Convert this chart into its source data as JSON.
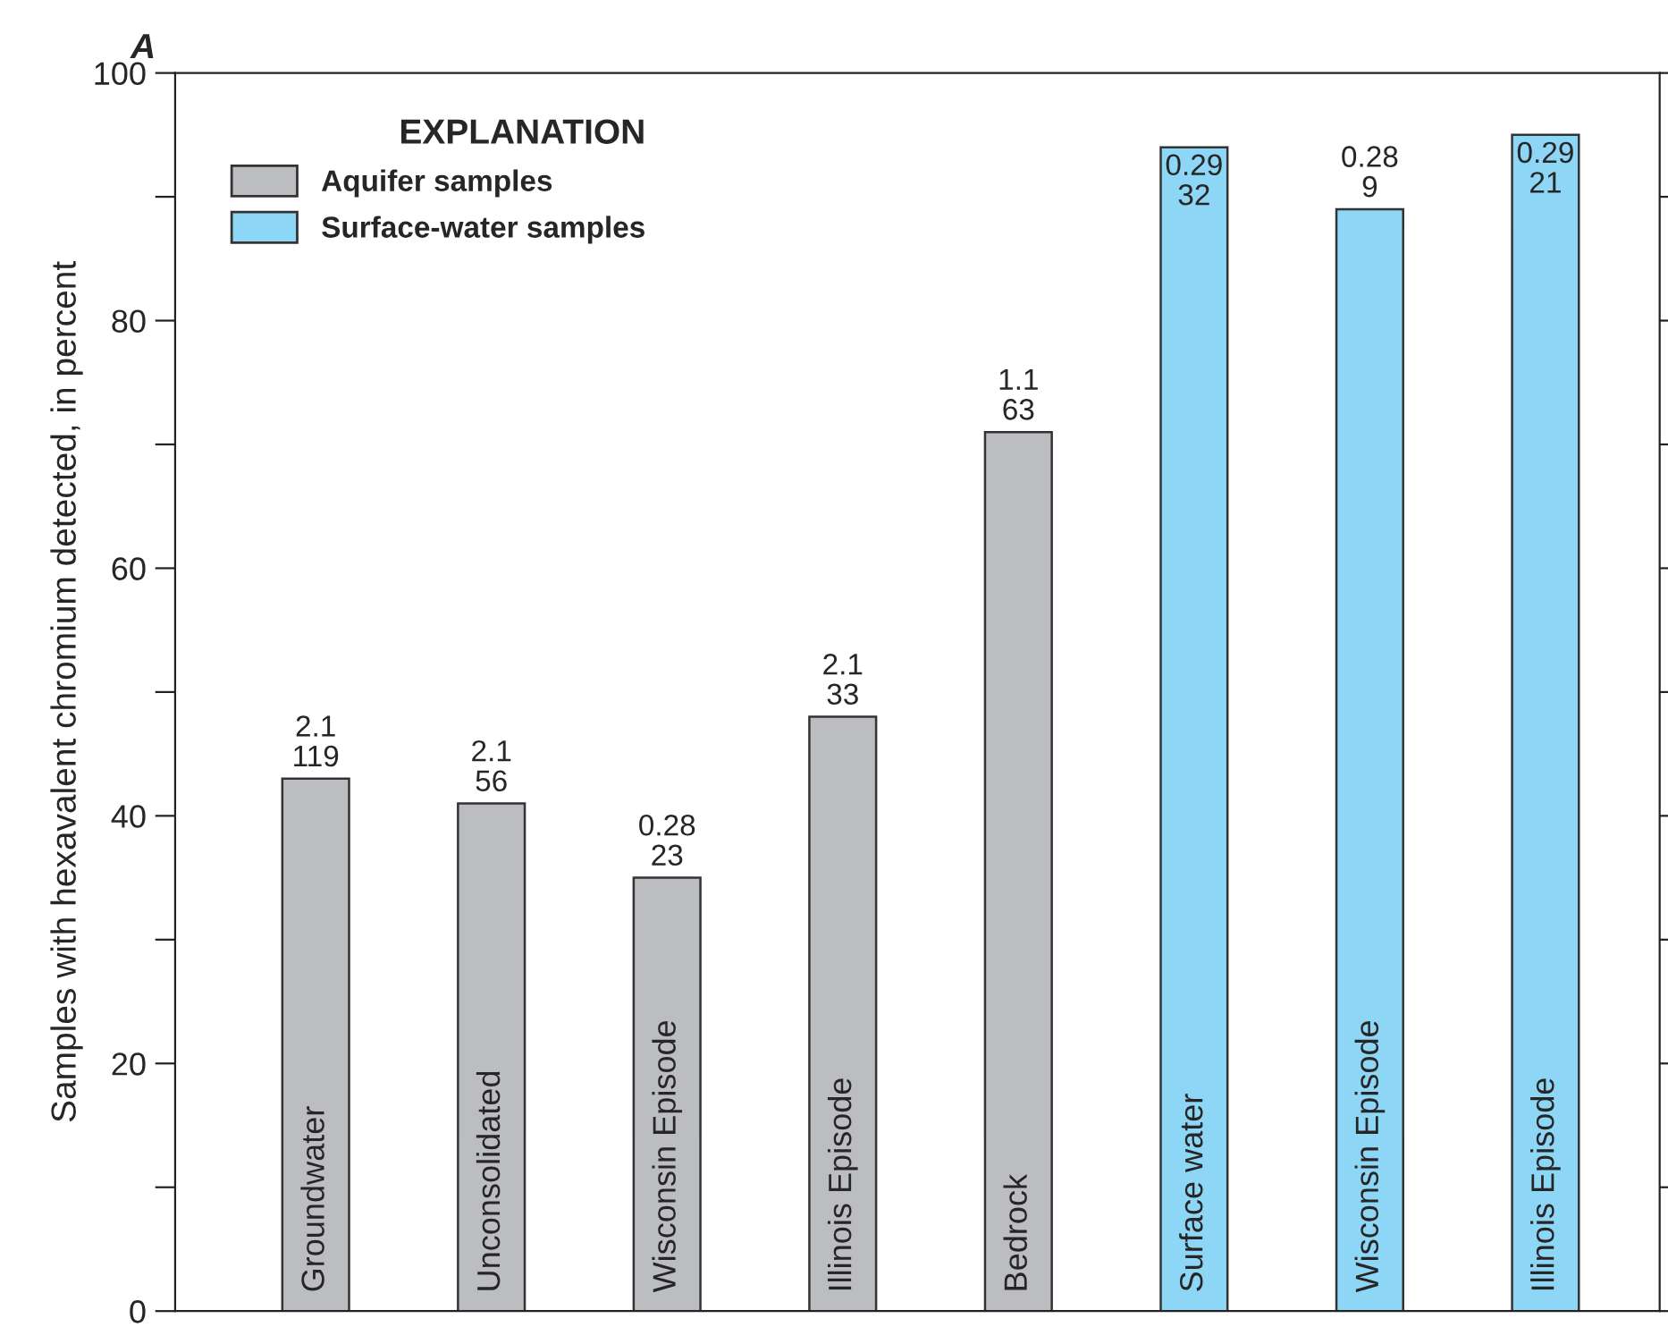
{
  "chart_data": {
    "type": "bar",
    "title": "A",
    "ylabel": "Samples with hexavalent chromium detected, in percent",
    "legend_title": "EXPLANATION",
    "legend": "top left",
    "categories": [
      "Groundwater",
      "Unconsolidated",
      "Wisconsin Episode",
      "Illinois Episode",
      "Bedrock",
      "Surface water",
      "Wisconsin Episode",
      "Illinois Episode"
    ],
    "series": [
      {
        "name": "Aquifer samples",
        "color": "#bcbdc1",
        "values": [
          43,
          41,
          35,
          48,
          71,
          null,
          null,
          null
        ]
      },
      {
        "name": "Surface-water samples",
        "color": "#8ed6f5",
        "values": [
          null,
          null,
          null,
          null,
          null,
          94,
          89,
          95
        ]
      }
    ],
    "annotations": [
      "2.1\n119",
      "2.1\n56",
      "0.28\n23",
      "2.1\n33",
      "1.1\n63",
      "0.29\n32",
      "0.28\n9",
      "0.29\n21"
    ],
    "stacked": true,
    "ylim": [
      0,
      100
    ],
    "yticks": [
      0,
      {
        "value": 10,
        "label": null
      },
      20,
      {
        "value": 30,
        "label": null
      },
      40,
      {
        "value": 50,
        "label": null
      },
      60,
      {
        "value": 70,
        "label": null
      },
      80,
      {
        "value": 90,
        "label": null
      },
      100
    ],
    "grid": false
  }
}
